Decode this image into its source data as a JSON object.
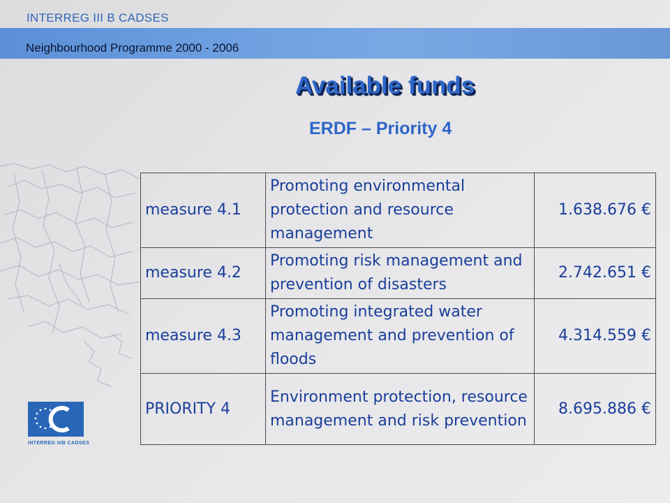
{
  "header": {
    "program": "INTERREG III B CADSES",
    "subtitle": "Neighbourhood Programme 2000 - 2006"
  },
  "title": "Available funds",
  "subtitle": "ERDF – Priority 4",
  "table": {
    "rows": [
      {
        "measure": "measure 4.1",
        "description": "Promoting environmental protection and resource management",
        "amount": "1.638.676 €"
      },
      {
        "measure": "measure 4.2",
        "description": "Promoting risk management and prevention of disasters",
        "amount": "2.742.651 €"
      },
      {
        "measure": "measure 4.3",
        "description": "Promoting integrated water management and prevention of floods",
        "amount": "4.314.559 €"
      },
      {
        "measure": "PRIORITY 4",
        "description": "Environment protection, resource management and risk prevention",
        "amount": "8.695.886 €"
      }
    ]
  },
  "logo": {
    "text": "INTERREG IIIB CADSES",
    "icon": "eu-stars-logo",
    "color": "#2a66b8"
  },
  "colors": {
    "accent": "#2e66c8",
    "band": "#6b9ee0",
    "text": "#1a3e9a"
  }
}
